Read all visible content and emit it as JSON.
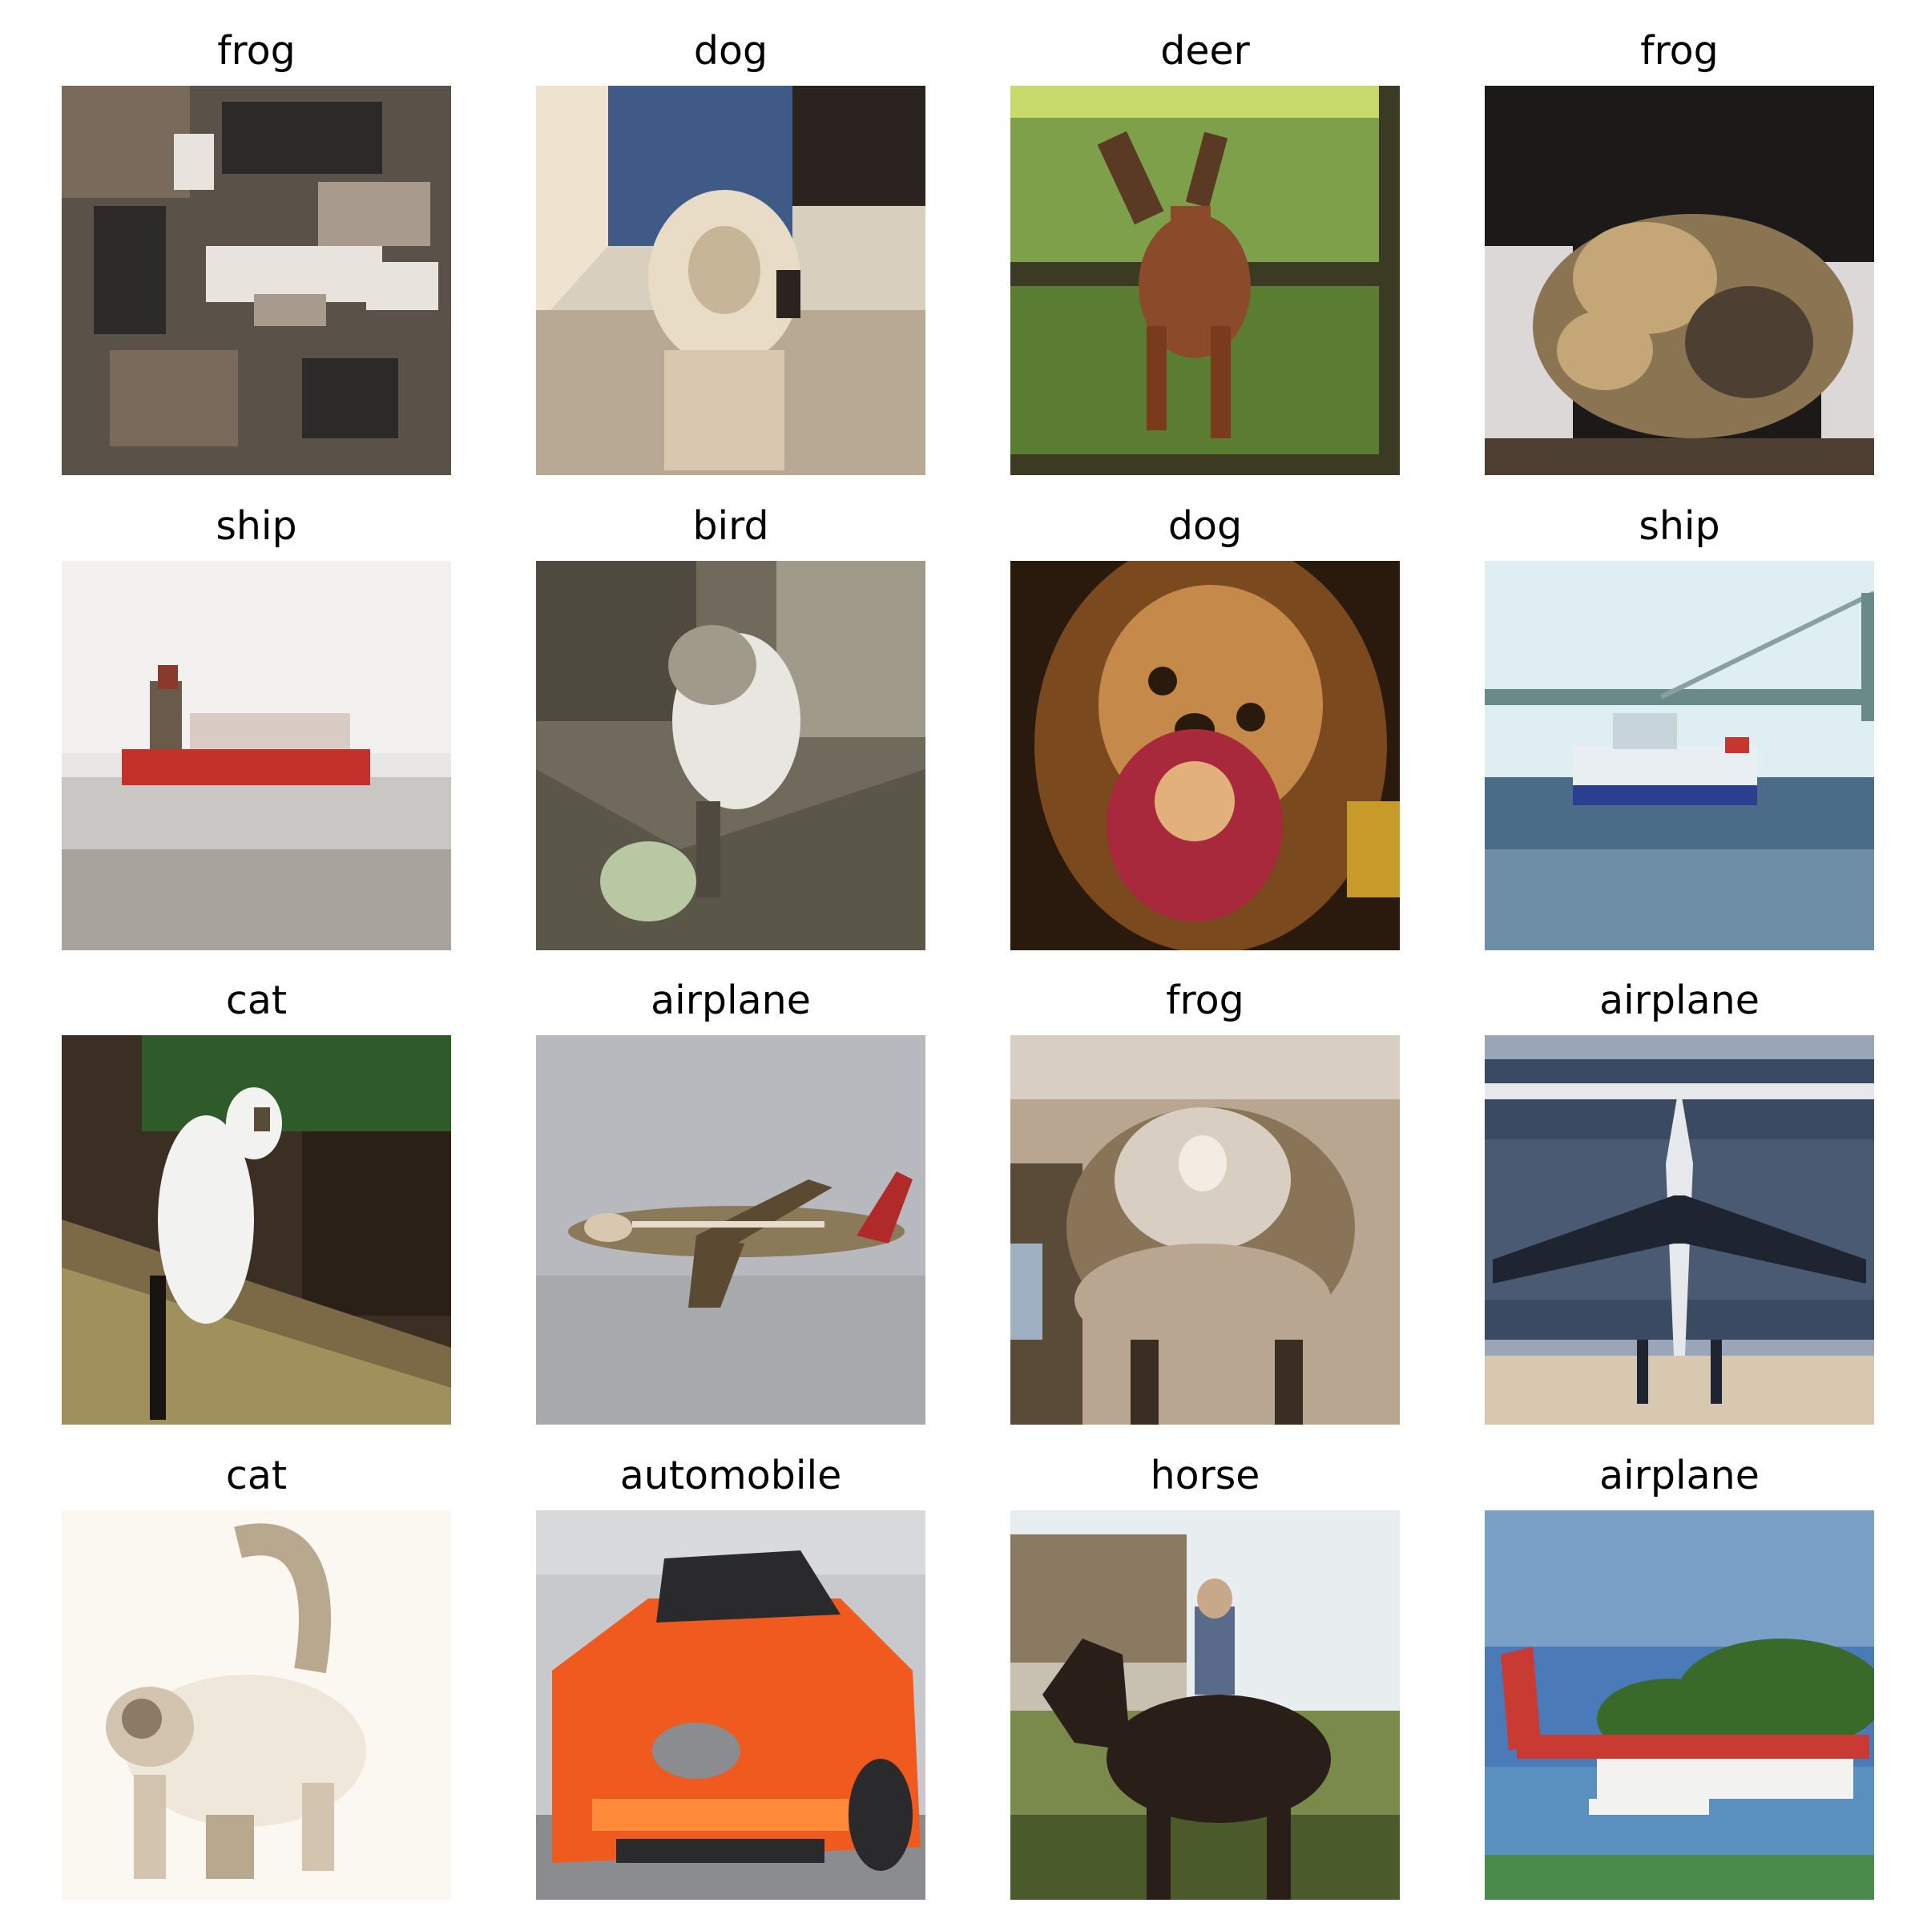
{
  "tiles": [
    {
      "label": "frog",
      "subject": "frog-image",
      "palette": [
        "#5a5149",
        "#a89a8c",
        "#2c2a28",
        "#e8e4dd",
        "#7a6a5c"
      ]
    },
    {
      "label": "dog",
      "subject": "dog-image",
      "palette": [
        "#d9cfbf",
        "#b8a994",
        "#3f5a86",
        "#2b231f",
        "#efe3cf"
      ]
    },
    {
      "label": "deer",
      "subject": "deer-image",
      "palette": [
        "#7ea04a",
        "#5b7d32",
        "#8b4a2a",
        "#c7d96a",
        "#3b3a22"
      ]
    },
    {
      "label": "frog",
      "subject": "frog-image",
      "palette": [
        "#1c1a18",
        "#8a7452",
        "#c4a677",
        "#ddd8d8",
        "#4d4032"
      ]
    },
    {
      "label": "ship",
      "subject": "ship-image",
      "palette": [
        "#e9e6e6",
        "#c9c6c4",
        "#c4302a",
        "#a9a39e",
        "#f3f1f0"
      ]
    },
    {
      "label": "bird",
      "subject": "bird-image",
      "palette": [
        "#6f6a5c",
        "#a09a8a",
        "#e8e6e0",
        "#4e4a40",
        "#b7c8a2"
      ]
    },
    {
      "label": "dog",
      "subject": "dog-image",
      "palette": [
        "#7a4a1e",
        "#c58a4a",
        "#a8283c",
        "#2a1a0e",
        "#e2b07a"
      ]
    },
    {
      "label": "ship",
      "subject": "ship-image",
      "palette": [
        "#dfeef2",
        "#4b6c88",
        "#2a3f8f",
        "#c7372f",
        "#8fb0c4"
      ]
    },
    {
      "label": "cat",
      "subject": "cat-image",
      "palette": [
        "#3a2f22",
        "#7b6a45",
        "#f2f2f0",
        "#2f5a2a",
        "#a0905c"
      ]
    },
    {
      "label": "airplane",
      "subject": "airplane-image",
      "palette": [
        "#b8b9be",
        "#a8a9ad",
        "#8b7a5a",
        "#5a4a32",
        "#b02a2a"
      ]
    },
    {
      "label": "frog",
      "subject": "frog-image",
      "palette": [
        "#b8a690",
        "#8a7458",
        "#d8cfc2",
        "#5a4a38",
        "#9fb0c0"
      ]
    },
    {
      "label": "airplane",
      "subject": "airplane-image",
      "palette": [
        "#3a4a62",
        "#d8c8b0",
        "#1e2430",
        "#9aa6b8",
        "#e6e8ec"
      ]
    },
    {
      "label": "cat",
      "subject": "cat-image",
      "palette": [
        "#fbf8f2",
        "#d2c4ae",
        "#8a7a66",
        "#efe7da",
        "#b8a88e"
      ]
    },
    {
      "label": "automobile",
      "subject": "automobile-image",
      "palette": [
        "#f05a1e",
        "#c8c9cc",
        "#2a2a2c",
        "#8a8c90",
        "#ff8a3a"
      ]
    },
    {
      "label": "horse",
      "subject": "horse-image",
      "palette": [
        "#2a1e18",
        "#7a8a4a",
        "#e8eef0",
        "#8a7a62",
        "#4a5a2a"
      ]
    },
    {
      "label": "airplane",
      "subject": "airplane-image",
      "palette": [
        "#4a7ab8",
        "#c83a32",
        "#3a6a2a",
        "#f2f2f0",
        "#7aa0c8"
      ]
    }
  ]
}
